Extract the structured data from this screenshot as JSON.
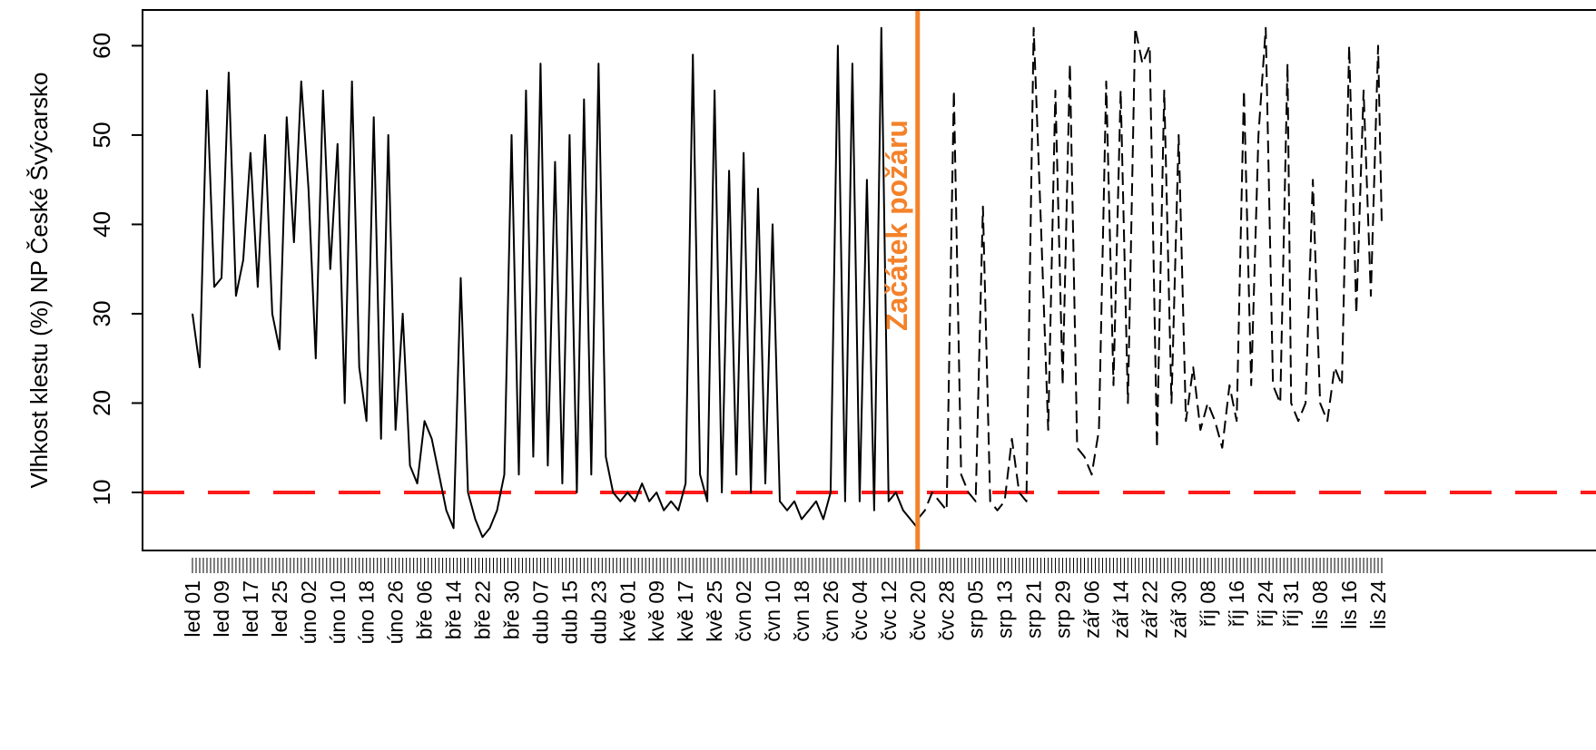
{
  "chart_data": {
    "type": "line",
    "title": "",
    "xlabel": "",
    "ylabel": "Vlhkost klestu (%) NP České Švýcarsko",
    "ylim": [
      3.5,
      64
    ],
    "yticks": [
      10,
      20,
      30,
      40,
      50,
      60
    ],
    "grid": false,
    "legend": "none",
    "x_tick_labels": [
      "led 01",
      "led 09",
      "led 17",
      "led 25",
      "úno 02",
      "úno 10",
      "úno 18",
      "úno 26",
      "bře 06",
      "bře 14",
      "bře 22",
      "bře 30",
      "dub 07",
      "dub 15",
      "dub 23",
      "kvě 01",
      "kvě 09",
      "kvě 17",
      "kvě 25",
      "čvn 02",
      "čvn 10",
      "čvn 18",
      "čvn 26",
      "čvc 04",
      "čvc 12",
      "čvc 20",
      "čvc 28",
      "srp 05",
      "srp 13",
      "srp 21",
      "srp 29",
      "zář 06",
      "zář 14",
      "zář 22",
      "zář 30",
      "říj 08",
      "říj 16",
      "říj 24",
      "říj 31",
      "lis 08",
      "lis 16",
      "lis 24"
    ],
    "threshold": {
      "value": 10,
      "color": "#ff1a1a",
      "style": "dashed"
    },
    "fire_start": {
      "label": "Začátek požáru",
      "date": "čvc 20",
      "color": "#f4822a"
    },
    "series": [
      {
        "style": "solid",
        "color": "#000000",
        "points": [
          [
            "led 01",
            30
          ],
          [
            "led 03",
            24
          ],
          [
            "led 05",
            55
          ],
          [
            "led 07",
            33
          ],
          [
            "led 09",
            34
          ],
          [
            "led 11",
            57
          ],
          [
            "led 13",
            32
          ],
          [
            "led 15",
            36
          ],
          [
            "led 17",
            48
          ],
          [
            "led 19",
            33
          ],
          [
            "led 21",
            50
          ],
          [
            "led 23",
            30
          ],
          [
            "led 25",
            26
          ],
          [
            "led 27",
            52
          ],
          [
            "led 29",
            38
          ],
          [
            "led 31",
            56
          ],
          [
            "úno 02",
            44
          ],
          [
            "úno 04",
            25
          ],
          [
            "úno 06",
            55
          ],
          [
            "úno 08",
            35
          ],
          [
            "úno 10",
            49
          ],
          [
            "úno 12",
            20
          ],
          [
            "úno 14",
            56
          ],
          [
            "úno 16",
            24
          ],
          [
            "úno 18",
            18
          ],
          [
            "úno 20",
            52
          ],
          [
            "úno 22",
            16
          ],
          [
            "úno 24",
            50
          ],
          [
            "úno 26",
            17
          ],
          [
            "úno 28",
            30
          ],
          [
            "bře 02",
            13
          ],
          [
            "bře 04",
            11
          ],
          [
            "bře 06",
            18
          ],
          [
            "bře 08",
            16
          ],
          [
            "bře 10",
            12
          ],
          [
            "bře 12",
            8
          ],
          [
            "bře 14",
            6
          ],
          [
            "bře 16",
            34
          ],
          [
            "bře 18",
            10
          ],
          [
            "bře 20",
            7
          ],
          [
            "bře 22",
            5
          ],
          [
            "bře 24",
            6
          ],
          [
            "bře 26",
            8
          ],
          [
            "bře 28",
            12
          ],
          [
            "bře 30",
            50
          ],
          [
            "dub 01",
            12
          ],
          [
            "dub 03",
            55
          ],
          [
            "dub 05",
            14
          ],
          [
            "dub 07",
            58
          ],
          [
            "dub 09",
            13
          ],
          [
            "dub 11",
            47
          ],
          [
            "dub 13",
            11
          ],
          [
            "dub 15",
            50
          ],
          [
            "dub 17",
            10
          ],
          [
            "dub 19",
            54
          ],
          [
            "dub 21",
            12
          ],
          [
            "dub 23",
            58
          ],
          [
            "dub 25",
            14
          ],
          [
            "dub 27",
            10
          ],
          [
            "dub 29",
            9
          ],
          [
            "kvě 01",
            10
          ],
          [
            "kvě 03",
            9
          ],
          [
            "kvě 05",
            11
          ],
          [
            "kvě 07",
            9
          ],
          [
            "kvě 09",
            10
          ],
          [
            "kvě 11",
            8
          ],
          [
            "kvě 13",
            9
          ],
          [
            "kvě 15",
            8
          ],
          [
            "kvě 17",
            11
          ],
          [
            "kvě 19",
            59
          ],
          [
            "kvě 21",
            12
          ],
          [
            "kvě 23",
            9
          ],
          [
            "kvě 25",
            55
          ],
          [
            "kvě 27",
            10
          ],
          [
            "kvě 29",
            46
          ],
          [
            "kvě 31",
            12
          ],
          [
            "čvn 02",
            48
          ],
          [
            "čvn 04",
            10
          ],
          [
            "čvn 06",
            44
          ],
          [
            "čvn 08",
            11
          ],
          [
            "čvn 10",
            40
          ],
          [
            "čvn 12",
            9
          ],
          [
            "čvn 14",
            8
          ],
          [
            "čvn 16",
            9
          ],
          [
            "čvn 18",
            7
          ],
          [
            "čvn 20",
            8
          ],
          [
            "čvn 22",
            9
          ],
          [
            "čvn 24",
            7
          ],
          [
            "čvn 26",
            10
          ],
          [
            "čvn 28",
            60
          ],
          [
            "čvn 30",
            9
          ],
          [
            "čvc 02",
            58
          ],
          [
            "čvc 04",
            9
          ],
          [
            "čvc 06",
            45
          ],
          [
            "čvc 08",
            8
          ],
          [
            "čvc 10",
            62
          ],
          [
            "čvc 12",
            9
          ],
          [
            "čvc 14",
            10
          ],
          [
            "čvc 16",
            8
          ],
          [
            "čvc 18",
            7
          ],
          [
            "čvc 20",
            6
          ]
        ]
      },
      {
        "style": "dashed",
        "color": "#000000",
        "points": [
          [
            "čvc 20",
            7
          ],
          [
            "čvc 22",
            8
          ],
          [
            "čvc 24",
            10
          ],
          [
            "čvc 26",
            9
          ],
          [
            "čvc 28",
            8
          ],
          [
            "čvc 30",
            55
          ],
          [
            "srp 01",
            12
          ],
          [
            "srp 03",
            10
          ],
          [
            "srp 05",
            9
          ],
          [
            "srp 07",
            42
          ],
          [
            "srp 09",
            9
          ],
          [
            "srp 11",
            8
          ],
          [
            "srp 13",
            9
          ],
          [
            "srp 15",
            16
          ],
          [
            "srp 17",
            10
          ],
          [
            "srp 19",
            9
          ],
          [
            "srp 21",
            62
          ],
          [
            "srp 23",
            40
          ],
          [
            "srp 25",
            17
          ],
          [
            "srp 27",
            55
          ],
          [
            "srp 29",
            22
          ],
          [
            "srp 31",
            58
          ],
          [
            "zář 02",
            15
          ],
          [
            "zář 04",
            14
          ],
          [
            "zář 06",
            12
          ],
          [
            "zář 08",
            17
          ],
          [
            "zář 10",
            56
          ],
          [
            "zář 12",
            22
          ],
          [
            "zář 14",
            55
          ],
          [
            "zář 16",
            20
          ],
          [
            "zář 18",
            62
          ],
          [
            "zář 20",
            58
          ],
          [
            "zář 22",
            60
          ],
          [
            "zář 24",
            15
          ],
          [
            "zář 26",
            55
          ],
          [
            "zář 28",
            20
          ],
          [
            "zář 30",
            50
          ],
          [
            "říj 02",
            18
          ],
          [
            "říj 04",
            24
          ],
          [
            "říj 06",
            17
          ],
          [
            "říj 08",
            20
          ],
          [
            "říj 10",
            18
          ],
          [
            "říj 12",
            15
          ],
          [
            "říj 14",
            22
          ],
          [
            "říj 16",
            18
          ],
          [
            "říj 18",
            55
          ],
          [
            "říj 20",
            22
          ],
          [
            "říj 22",
            50
          ],
          [
            "říj 24",
            62
          ],
          [
            "říj 26",
            22
          ],
          [
            "říj 28",
            20
          ],
          [
            "říj 30",
            58
          ],
          [
            "říj 31",
            20
          ],
          [
            "lis 02",
            18
          ],
          [
            "lis 04",
            20
          ],
          [
            "lis 06",
            45
          ],
          [
            "lis 08",
            20
          ],
          [
            "lis 10",
            18
          ],
          [
            "lis 12",
            24
          ],
          [
            "lis 14",
            22
          ],
          [
            "lis 16",
            60
          ],
          [
            "lis 18",
            30
          ],
          [
            "lis 20",
            55
          ],
          [
            "lis 22",
            32
          ],
          [
            "lis 24",
            60
          ],
          [
            "lis 25",
            40
          ]
        ]
      }
    ]
  }
}
